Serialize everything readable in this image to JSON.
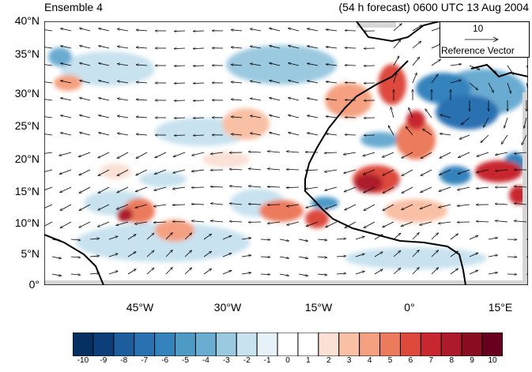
{
  "header": {
    "member": "Ensemble 4",
    "valid_time": "(54 h forecast) 0600 UTC 13 Aug 2004"
  },
  "axes": {
    "lat_labels": [
      "40°N",
      "35°N",
      "30°N",
      "25°N",
      "20°N",
      "15°N",
      "10°N",
      "5°N",
      "0°"
    ],
    "lon_labels": [
      "45°W",
      "30°W",
      "15°W",
      "0°",
      "15°E"
    ]
  },
  "reference_vector": {
    "magnitude": "10",
    "label": "Reference Vector"
  },
  "colorbar": {
    "labels": [
      "-10",
      "-9",
      "-8",
      "-7",
      "-6",
      "-5",
      "-4",
      "-3",
      "-2",
      "-1",
      "0",
      "1",
      "2",
      "3",
      "4",
      "5",
      "6",
      "7",
      "8",
      "9",
      "10"
    ],
    "colors": [
      "#053061",
      "#0c3f7a",
      "#1d5d9e",
      "#2a71b2",
      "#3583bd",
      "#4d9ac7",
      "#6bacd1",
      "#9bc9e0",
      "#c8e2ef",
      "#e6f2f8",
      "#ffffff",
      "#ffffff",
      "#fbe0d5",
      "#f9c0a5",
      "#f4a081",
      "#ec7a5c",
      "#dd4a3c",
      "#c8272f",
      "#ad1a2b",
      "#8a0d22",
      "#67001f"
    ]
  },
  "colors": {
    "land": "#d6d6d6",
    "coast": "#000000"
  }
}
